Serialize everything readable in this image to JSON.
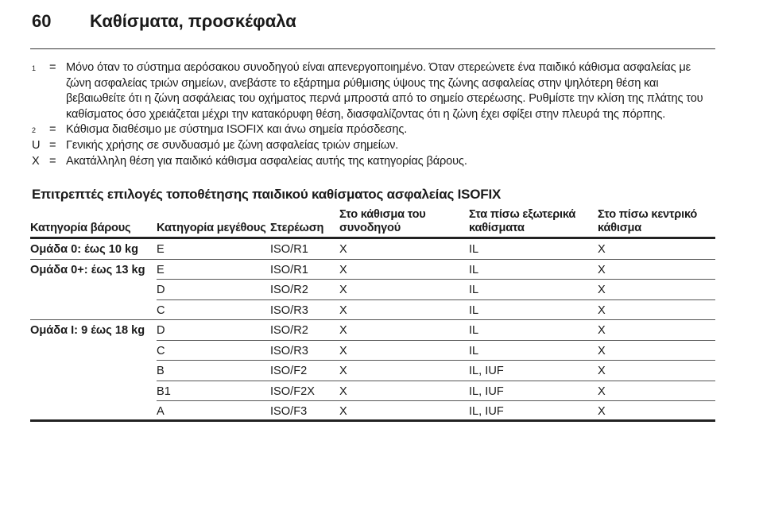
{
  "header": {
    "page_number": "60",
    "title": "Καθίσματα, προσκέφαλα"
  },
  "notes": [
    {
      "marker": "1",
      "sup": true,
      "text": "Μόνο όταν το σύστημα αερόσακου συνοδηγού είναι απενεργοποιημένο. Όταν στερεώνετε ένα παιδικό κάθισμα ασφαλείας με ζώνη ασφαλείας τριών σημείων, ανεβάστε το εξάρτημα ρύθμισης ύψους της ζώνης ασφαλείας στην ψηλότερη θέση και βεβαιωθείτε ότι η ζώνη ασφάλειας του οχήματος περνά μπροστά από το σημείο στερέωσης. Ρυθμίστε την κλίση της πλάτης του καθίσματος όσο χρειάζεται μέχρι την κατακόρυφη θέση, διασφαλίζοντας ότι η ζώνη έχει σφίξει στην πλευρά της πόρπης."
    },
    {
      "marker": "2",
      "sup": true,
      "text": "Κάθισμα διαθέσιμο με σύστημα ISOFIX και άνω σημεία πρόσδεσης."
    },
    {
      "marker": "U",
      "sup": false,
      "text": "Γενικής χρήσης σε συνδυασμό με ζώνη ασφαλείας τριών σημείων."
    },
    {
      "marker": "X",
      "sup": false,
      "text": "Ακατάλληλη θέση για παιδικό κάθισμα ασφαλείας αυτής της κατηγορίας βάρους."
    }
  ],
  "equals": "=",
  "section_title": "Επιτρεπτές επιλογές τοποθέτησης παιδικού καθίσματος ασφαλείας ISOFIX",
  "table": {
    "headers": [
      "Κατηγορία βάρους",
      "Κατηγορία μεγέθους",
      "Στερέωση",
      "Στο κάθισμα του\nσυνοδηγού",
      "Στα πίσω εξωτερικά\nκαθίσματα",
      "Στο πίσω κεντρικό\nκάθισμα"
    ],
    "rows": [
      [
        "Ομάδα 0: έως 10 kg",
        "E",
        "ISO/R1",
        "X",
        "IL",
        "X"
      ],
      [
        "Ομάδα 0+: έως 13 kg",
        "E",
        "ISO/R1",
        "X",
        "IL",
        "X"
      ],
      [
        "",
        "D",
        "ISO/R2",
        "X",
        "IL",
        "X"
      ],
      [
        "",
        "C",
        "ISO/R3",
        "X",
        "IL",
        "X"
      ],
      [
        "Ομάδα I: 9 έως 18 kg",
        "D",
        "ISO/R2",
        "X",
        "IL",
        "X"
      ],
      [
        "",
        "C",
        "ISO/R3",
        "X",
        "IL",
        "X"
      ],
      [
        "",
        "B",
        "ISO/F2",
        "X",
        "IL, IUF",
        "X"
      ],
      [
        "",
        "B1",
        "ISO/F2X",
        "X",
        "IL, IUF",
        "X"
      ],
      [
        "",
        "A",
        "ISO/F3",
        "X",
        "IL, IUF",
        "X"
      ]
    ]
  }
}
